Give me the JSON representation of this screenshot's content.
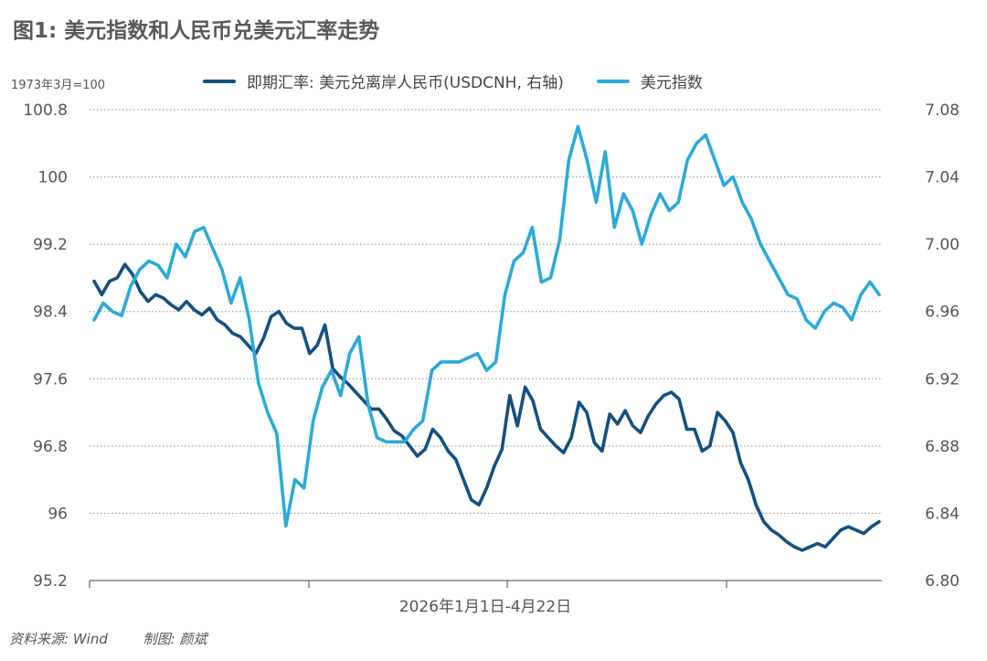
{
  "title": "图1: 美元指数和人民币兑美元汇率走势",
  "source": "资料来源: Wind",
  "drawer": "制图: 颜斌",
  "chart_data": {
    "type": "line",
    "left_unit": "1973年3月=100",
    "xlabel": "2026年1月1日-4月22日",
    "grid": true,
    "legend_position": "top",
    "left_axis": {
      "ylim": [
        95.2,
        100.8
      ],
      "ticks": [
        "100.8",
        "100",
        "99.2",
        "98.4",
        "97.6",
        "96.8",
        "96",
        "95.2"
      ]
    },
    "right_axis": {
      "ylim": [
        6.8,
        7.08
      ],
      "ticks": [
        "7.08",
        "7.04",
        "7.00",
        "6.96",
        "6.92",
        "6.88",
        "6.84",
        "6.80"
      ]
    },
    "series": [
      {
        "name": "即期汇率: 美元兑离岸人民币(USDCNH, 右轴)",
        "axis": "right",
        "color": "#14507f",
        "values": [
          6.978,
          6.97,
          6.978,
          6.98,
          6.988,
          6.982,
          6.972,
          6.966,
          6.97,
          6.968,
          6.964,
          6.961,
          6.966,
          6.961,
          6.958,
          6.962,
          6.955,
          6.952,
          6.947,
          6.945,
          6.94,
          6.935,
          6.944,
          6.957,
          6.96,
          6.953,
          6.95,
          6.95,
          6.935,
          6.94,
          6.952,
          6.926,
          6.921,
          6.917,
          6.912,
          6.907,
          6.902,
          6.902,
          6.896,
          6.889,
          6.886,
          6.88,
          6.874,
          6.878,
          6.89,
          6.885,
          6.877,
          6.872,
          6.86,
          6.848,
          6.845,
          6.855,
          6.868,
          6.878,
          6.91,
          6.892,
          6.915,
          6.907,
          6.89,
          6.885,
          6.88,
          6.876,
          6.885,
          6.906,
          6.9,
          6.882,
          6.877,
          6.899,
          6.893,
          6.901,
          6.892,
          6.888,
          6.898,
          6.905,
          6.91,
          6.912,
          6.908,
          6.89,
          6.89,
          6.877,
          6.88,
          6.9,
          6.895,
          6.888,
          6.87,
          6.86,
          6.845,
          6.835,
          6.83,
          6.827,
          6.823,
          6.82,
          6.818,
          6.82,
          6.822,
          6.82,
          6.825,
          6.83,
          6.832,
          6.83,
          6.828,
          6.832,
          6.835
        ]
      },
      {
        "name": "美元指数",
        "axis": "left",
        "color": "#2baad8",
        "values": [
          98.3,
          98.5,
          98.4,
          98.35,
          98.7,
          98.9,
          99.0,
          98.95,
          98.8,
          99.2,
          99.05,
          99.35,
          99.4,
          99.15,
          98.9,
          98.5,
          98.8,
          98.3,
          97.55,
          97.2,
          96.95,
          95.85,
          96.4,
          96.3,
          97.1,
          97.5,
          97.7,
          97.4,
          97.9,
          98.1,
          97.3,
          96.9,
          96.85,
          96.85,
          96.85,
          97.0,
          97.1,
          97.7,
          97.8,
          97.8,
          97.8,
          97.85,
          97.9,
          97.7,
          97.8,
          98.6,
          99.0,
          99.1,
          99.4,
          98.75,
          98.8,
          99.25,
          100.2,
          100.6,
          100.2,
          99.7,
          100.3,
          99.4,
          99.8,
          99.6,
          99.2,
          99.55,
          99.8,
          99.6,
          99.7,
          100.2,
          100.4,
          100.5,
          100.2,
          99.9,
          100.0,
          99.7,
          99.5,
          99.2,
          99.0,
          98.8,
          98.6,
          98.55,
          98.3,
          98.2,
          98.4,
          98.5,
          98.45,
          98.3,
          98.6,
          98.75,
          98.6
        ]
      }
    ],
    "x_ticks": [
      "",
      "",
      "",
      ""
    ]
  }
}
